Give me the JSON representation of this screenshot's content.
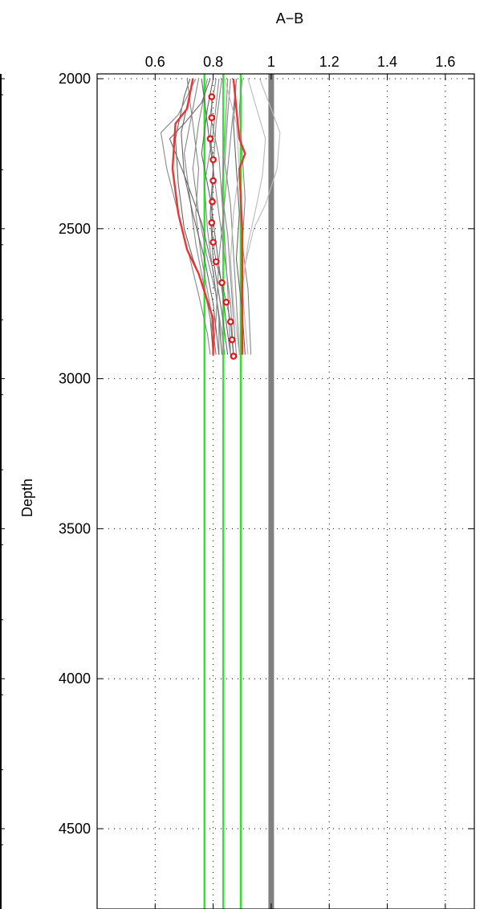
{
  "chart_data": {
    "type": "line",
    "title": "A−B",
    "xlabel": "",
    "ylabel": "Depth",
    "xlim": [
      0.4,
      1.7
    ],
    "ylim": [
      2000,
      4750
    ],
    "y_reversed": true,
    "x_axis_position": "top",
    "grid": true,
    "xticks": [
      "0.6",
      "0.8",
      "1",
      "1.2",
      "1.4",
      "1.6"
    ],
    "yticks": [
      "2000",
      "2500",
      "3000",
      "3500",
      "4000",
      "4500"
    ],
    "colors": {
      "ensemble": "#888888",
      "ensemble_light": "#bbbbbb",
      "bounds": "#ee3333",
      "points": "#ee1111",
      "reference_lines": "#22ee22",
      "unity_line": "#808080"
    },
    "reference_lines": [
      {
        "x": 0.77,
        "color": "#22ee22"
      },
      {
        "x": 0.835,
        "color": "#22ee22"
      },
      {
        "x": 0.895,
        "color": "#22ee22"
      }
    ],
    "unity_line": {
      "x": 1.0,
      "color": "#808080"
    },
    "series": [
      {
        "points": [
          [
            0.72,
            2000
          ],
          [
            0.7,
            2060
          ],
          [
            0.67,
            2200
          ],
          [
            0.68,
            2350
          ],
          [
            0.7,
            2500
          ],
          [
            0.73,
            2600
          ],
          [
            0.77,
            2700
          ],
          [
            0.79,
            2800
          ],
          [
            0.8,
            2920
          ]
        ]
      },
      {
        "points": [
          [
            0.75,
            2000
          ],
          [
            0.73,
            2100
          ],
          [
            0.7,
            2250
          ],
          [
            0.72,
            2400
          ],
          [
            0.74,
            2550
          ],
          [
            0.76,
            2650
          ],
          [
            0.78,
            2750
          ],
          [
            0.8,
            2850
          ],
          [
            0.81,
            2920
          ]
        ]
      },
      {
        "points": [
          [
            0.78,
            2000
          ],
          [
            0.75,
            2150
          ],
          [
            0.73,
            2300
          ],
          [
            0.75,
            2450
          ],
          [
            0.78,
            2600
          ],
          [
            0.81,
            2720
          ],
          [
            0.83,
            2850
          ],
          [
            0.84,
            2920
          ]
        ]
      },
      {
        "points": [
          [
            0.8,
            2000
          ],
          [
            0.78,
            2100
          ],
          [
            0.76,
            2250
          ],
          [
            0.79,
            2400
          ],
          [
            0.81,
            2550
          ],
          [
            0.83,
            2700
          ],
          [
            0.85,
            2850
          ],
          [
            0.86,
            2920
          ]
        ]
      },
      {
        "points": [
          [
            0.83,
            2000
          ],
          [
            0.81,
            2150
          ],
          [
            0.8,
            2300
          ],
          [
            0.82,
            2450
          ],
          [
            0.84,
            2600
          ],
          [
            0.86,
            2750
          ],
          [
            0.87,
            2920
          ]
        ]
      },
      {
        "points": [
          [
            0.86,
            2000
          ],
          [
            0.85,
            2120
          ],
          [
            0.84,
            2280
          ],
          [
            0.86,
            2420
          ],
          [
            0.87,
            2580
          ],
          [
            0.88,
            2740
          ],
          [
            0.89,
            2920
          ]
        ]
      },
      {
        "points": [
          [
            0.88,
            2000
          ],
          [
            0.87,
            2150
          ],
          [
            0.88,
            2300
          ],
          [
            0.89,
            2450
          ],
          [
            0.88,
            2600
          ],
          [
            0.9,
            2780
          ],
          [
            0.91,
            2920
          ]
        ]
      },
      {
        "points": [
          [
            0.9,
            2000
          ],
          [
            0.89,
            2100
          ],
          [
            0.9,
            2250
          ],
          [
            0.91,
            2400
          ],
          [
            0.9,
            2550
          ],
          [
            0.92,
            2700
          ],
          [
            0.93,
            2920
          ]
        ]
      },
      {
        "points": [
          [
            0.74,
            2000
          ],
          [
            0.68,
            2120
          ],
          [
            0.62,
            2180
          ],
          [
            0.64,
            2300
          ],
          [
            0.68,
            2450
          ],
          [
            0.72,
            2600
          ],
          [
            0.75,
            2720
          ],
          [
            0.78,
            2850
          ],
          [
            0.79,
            2920
          ]
        ]
      },
      {
        "points": [
          [
            0.79,
            2000
          ],
          [
            0.76,
            2080
          ],
          [
            0.7,
            2150
          ],
          [
            0.65,
            2200
          ],
          [
            0.7,
            2320
          ],
          [
            0.76,
            2480
          ],
          [
            0.8,
            2640
          ],
          [
            0.82,
            2800
          ],
          [
            0.83,
            2920
          ]
        ]
      },
      {
        "points": [
          [
            0.82,
            2000
          ],
          [
            0.8,
            2180
          ],
          [
            0.77,
            2350
          ],
          [
            0.78,
            2500
          ],
          [
            0.8,
            2650
          ],
          [
            0.82,
            2800
          ],
          [
            0.82,
            2920
          ]
        ]
      },
      {
        "points": [
          [
            0.85,
            2000
          ],
          [
            0.84,
            2200
          ],
          [
            0.83,
            2380
          ],
          [
            0.85,
            2520
          ],
          [
            0.86,
            2660
          ],
          [
            0.87,
            2800
          ],
          [
            0.88,
            2920
          ]
        ]
      },
      {
        "points": [
          [
            0.76,
            2000
          ],
          [
            0.78,
            2150
          ],
          [
            0.8,
            2300
          ],
          [
            0.79,
            2450
          ],
          [
            0.8,
            2600
          ],
          [
            0.83,
            2780
          ],
          [
            0.85,
            2920
          ]
        ]
      },
      {
        "points": [
          [
            0.81,
            2000
          ],
          [
            0.79,
            2120
          ],
          [
            0.82,
            2260
          ],
          [
            0.83,
            2400
          ],
          [
            0.84,
            2540
          ],
          [
            0.85,
            2700
          ],
          [
            0.86,
            2920
          ]
        ]
      },
      {
        "points": [
          [
            0.92,
            2000
          ],
          [
            0.95,
            2100
          ],
          [
            0.98,
            2200
          ],
          [
            0.97,
            2320
          ],
          [
            0.95,
            2420
          ],
          [
            0.92,
            2550
          ],
          [
            0.9,
            2700
          ],
          [
            0.92,
            2920
          ]
        ]
      },
      {
        "points": [
          [
            0.96,
            2000
          ],
          [
            1.0,
            2100
          ],
          [
            1.03,
            2180
          ],
          [
            1.02,
            2300
          ],
          [
            0.98,
            2420
          ],
          [
            0.94,
            2500
          ],
          [
            0.91,
            2620
          ]
        ]
      },
      {
        "points": [
          [
            0.88,
            2000
          ],
          [
            0.86,
            2200
          ],
          [
            0.84,
            2400
          ],
          [
            0.82,
            2600
          ],
          [
            0.81,
            2800
          ],
          [
            0.8,
            2920
          ]
        ]
      },
      {
        "points": [
          [
            0.71,
            2000
          ],
          [
            0.73,
            2150
          ],
          [
            0.75,
            2300
          ],
          [
            0.74,
            2450
          ],
          [
            0.76,
            2600
          ],
          [
            0.79,
            2760
          ],
          [
            0.81,
            2920
          ]
        ]
      },
      {
        "points": [
          [
            0.73,
            2000
          ],
          [
            0.69,
            2180
          ],
          [
            0.7,
            2320
          ],
          [
            0.73,
            2450
          ],
          [
            0.77,
            2600
          ],
          [
            0.8,
            2750
          ],
          [
            0.82,
            2920
          ]
        ]
      },
      {
        "points": [
          [
            0.84,
            2000
          ],
          [
            0.88,
            2150
          ],
          [
            0.89,
            2300
          ],
          [
            0.87,
            2450
          ],
          [
            0.86,
            2600
          ],
          [
            0.87,
            2750
          ],
          [
            0.89,
            2920
          ]
        ]
      },
      {
        "points": [
          [
            0.73,
            2000
          ],
          [
            0.71,
            2100
          ],
          [
            0.67,
            2150
          ],
          [
            0.66,
            2300
          ],
          [
            0.68,
            2450
          ],
          [
            0.71,
            2570
          ],
          [
            0.75,
            2650
          ],
          [
            0.8,
            2800
          ],
          [
            0.8,
            2920
          ]
        ]
      },
      {
        "points": [
          [
            0.87,
            2000
          ],
          [
            0.88,
            2100
          ],
          [
            0.89,
            2200
          ],
          [
            0.91,
            2250
          ],
          [
            0.89,
            2300
          ],
          [
            0.9,
            2500
          ],
          [
            0.9,
            2700
          ],
          [
            0.9,
            2920
          ]
        ]
      },
      {
        "points": [
          [
            0.795,
            2060
          ],
          [
            0.795,
            2130
          ],
          [
            0.79,
            2200
          ],
          [
            0.8,
            2270
          ],
          [
            0.8,
            2340
          ],
          [
            0.797,
            2410
          ],
          [
            0.795,
            2480
          ],
          [
            0.8,
            2545
          ],
          [
            0.81,
            2610
          ],
          [
            0.83,
            2680
          ],
          [
            0.845,
            2745
          ],
          [
            0.86,
            2810
          ],
          [
            0.865,
            2870
          ],
          [
            0.87,
            2925
          ]
        ]
      }
    ]
  }
}
